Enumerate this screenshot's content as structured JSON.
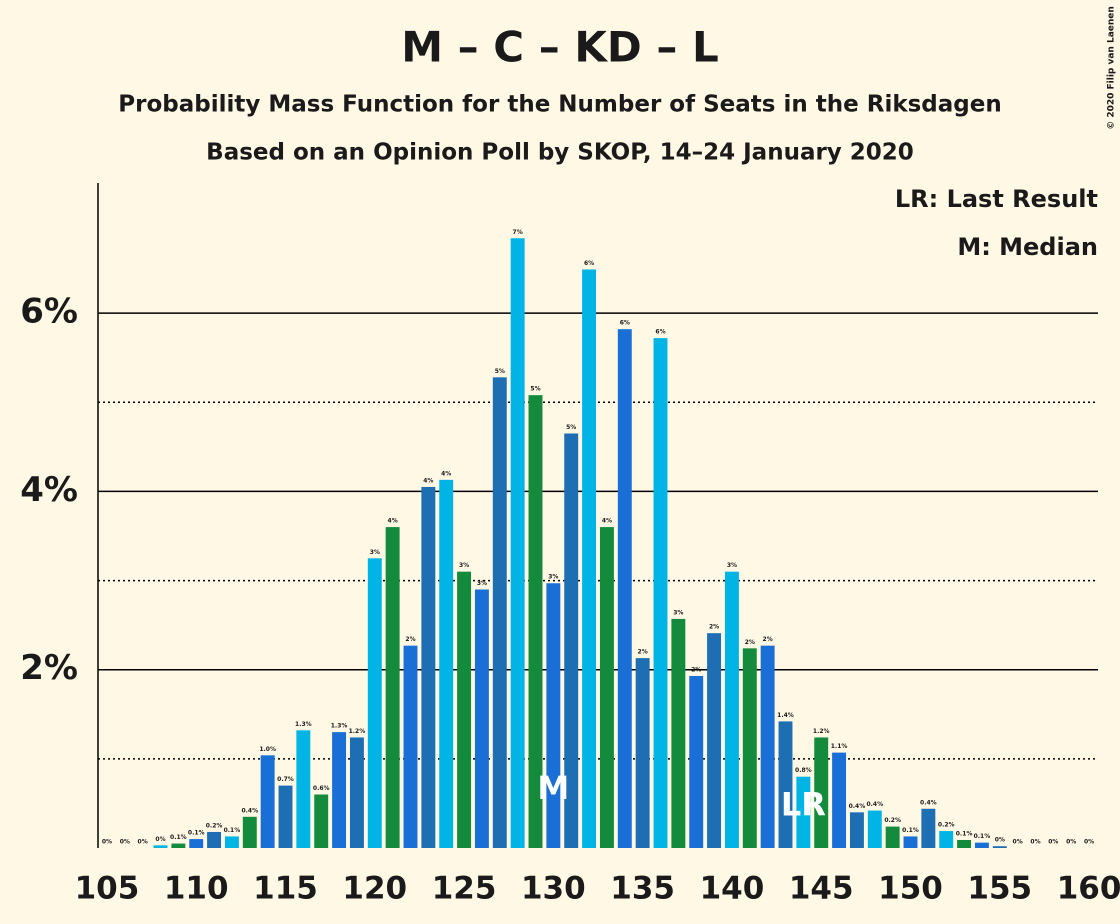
{
  "chart_data": {
    "type": "bar",
    "title": "M – C – KD – L",
    "subtitle": "Probability Mass Function for the Number of Seats in the Riksdagen",
    "subtitle2": "Based on an Opinion Poll by SKOP, 14–24 January 2020",
    "copyright": "© 2020 Filip van Laenen",
    "legend": [
      "LR: Last Result",
      "M: Median"
    ],
    "x": [
      105,
      106,
      107,
      108,
      109,
      110,
      111,
      112,
      113,
      114,
      115,
      116,
      117,
      118,
      119,
      120,
      121,
      122,
      123,
      124,
      125,
      126,
      127,
      128,
      129,
      130,
      131,
      132,
      133,
      134,
      135,
      136,
      137,
      138,
      139,
      140,
      141,
      142,
      143,
      144,
      145,
      146,
      147,
      148,
      149,
      150,
      151,
      152,
      153,
      154,
      155,
      156,
      157,
      158,
      159,
      160
    ],
    "values": [
      0,
      0,
      0,
      0.03,
      0.05,
      0.1,
      0.18,
      0.13,
      0.35,
      1.04,
      0.7,
      1.32,
      0.6,
      1.3,
      1.24,
      3.25,
      3.6,
      2.27,
      4.05,
      4.13,
      3.1,
      2.9,
      5.28,
      6.84,
      5.08,
      2.97,
      4.65,
      6.49,
      3.6,
      5.82,
      2.13,
      5.72,
      2.57,
      1.93,
      2.41,
      3.1,
      2.24,
      2.27,
      1.42,
      0.8,
      1.24,
      1.07,
      0.4,
      0.42,
      0.24,
      0.13,
      0.44,
      0.19,
      0.09,
      0.06,
      0.02,
      0,
      0,
      0,
      0,
      0
    ],
    "value_labels": [
      "0%",
      "0%",
      "0%",
      "0%",
      "0.1%",
      "0.1%",
      "0.2%",
      "0.1%",
      "0.4%",
      "1.0%",
      "0.7%",
      "1.3%",
      "0.6%",
      "1.3%",
      "1.2%",
      "3%",
      "4%",
      "2%",
      "4%",
      "4%",
      "3%",
      "3%",
      "5%",
      "7%",
      "5%",
      "3%",
      "5%",
      "6%",
      "4%",
      "6%",
      "2%",
      "6%",
      "3%",
      "2%",
      "2%",
      "3%",
      "2%",
      "2%",
      "1.4%",
      "0.8%",
      "1.2%",
      "1.1%",
      "0.4%",
      "0.4%",
      "0.2%",
      "0.1%",
      "0.4%",
      "0.2%",
      "0.1%",
      "0.1%",
      "0%",
      "0%",
      "0%",
      "0%",
      "0%",
      "0%"
    ],
    "colors": [
      "#138a3c",
      "#1a6fd6",
      "#1d6eb3",
      "#00b4e6"
    ],
    "annotations": [
      {
        "text": "M",
        "x": 130
      },
      {
        "text": "LR",
        "x": 144
      }
    ],
    "xlim": [
      104.5,
      160.5
    ],
    "xticks": [
      105,
      110,
      115,
      120,
      125,
      130,
      135,
      140,
      145,
      150,
      155,
      160
    ],
    "ylim": [
      0,
      7.46
    ],
    "yticks": [
      {
        "value": 2,
        "label": "2%"
      },
      {
        "value": 4,
        "label": "4%"
      },
      {
        "value": 6,
        "label": "6%"
      }
    ],
    "minor_yticks": [
      1,
      3,
      5
    ],
    "grid": true
  }
}
